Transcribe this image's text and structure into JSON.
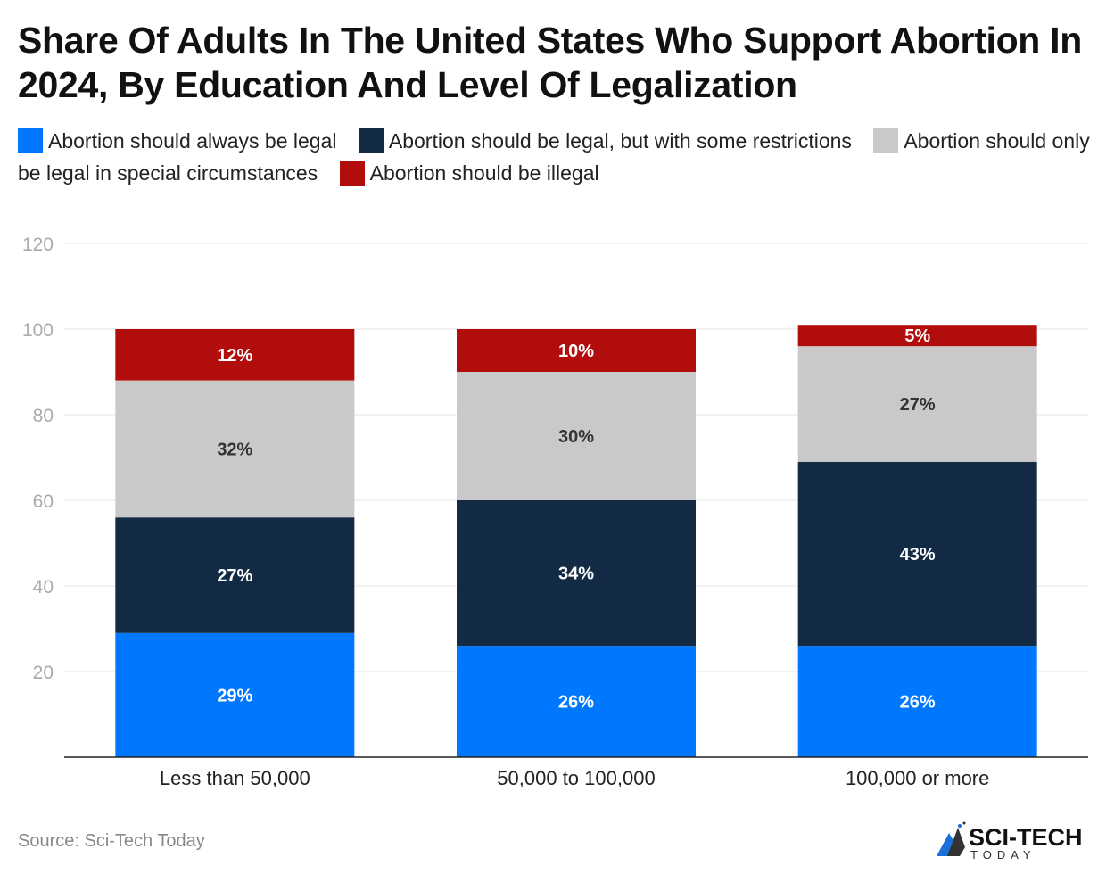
{
  "title": "Share Of Adults In The United States Who Support Abortion In 2024, By Education And Level Of Legalization",
  "source": "Source: Sci-Tech Today",
  "logo": {
    "main": "SCI-TECH",
    "sub": "TODAY"
  },
  "chart_data": {
    "type": "bar",
    "stacked": true,
    "categories": [
      "Less than 50,000",
      "50,000 to 100,000",
      "100,000 or more"
    ],
    "series": [
      {
        "name": "Abortion should always be legal",
        "color": "#0077ff",
        "values": [
          29,
          26,
          26
        ],
        "labels": [
          "29%",
          "26%",
          "26%"
        ]
      },
      {
        "name": "Abortion should be legal, but with some restrictions",
        "color": "#132a45",
        "values": [
          27,
          34,
          43
        ],
        "labels": [
          "27%",
          "34%",
          "43%"
        ]
      },
      {
        "name": "Abortion should only be legal in special circumstances",
        "color": "#c8c9c8",
        "values": [
          32,
          30,
          27
        ],
        "labels": [
          "32%",
          "30%",
          "27%"
        ]
      },
      {
        "name": "Abortion should be illegal",
        "color": "#b20d0d",
        "values": [
          12,
          10,
          5
        ],
        "labels": [
          "12%",
          "10%",
          "5%"
        ]
      }
    ],
    "yticks": [
      "20",
      "40",
      "60",
      "80",
      "100",
      "120"
    ],
    "ylim": [
      0,
      120
    ],
    "grid": true,
    "legend": "top"
  }
}
